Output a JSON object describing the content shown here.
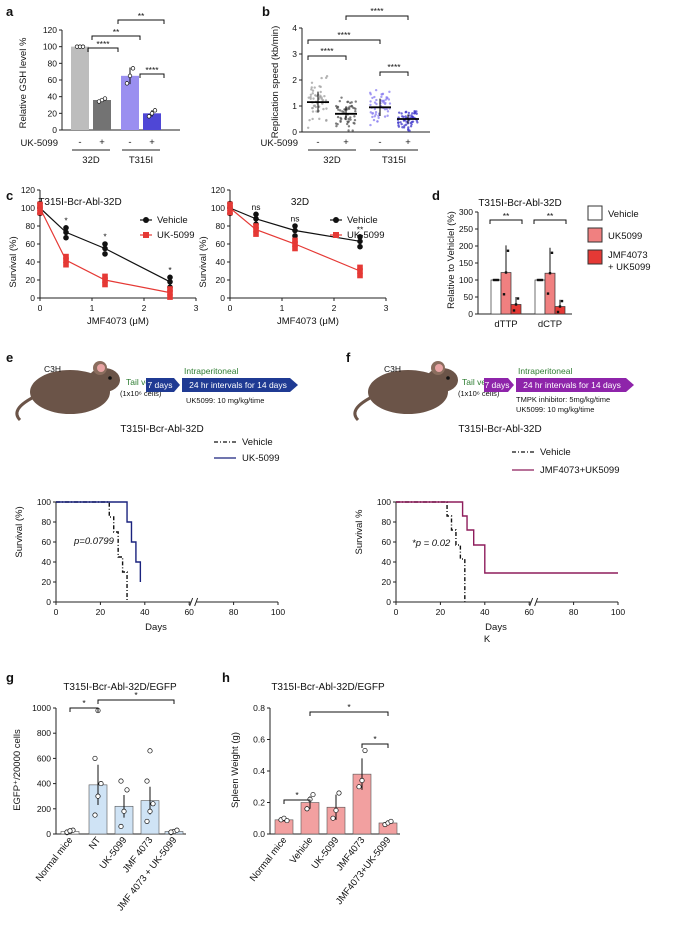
{
  "panels": {
    "a": {
      "letter": "a",
      "ylabel": "Relative GSH level %",
      "yticks": [
        "0",
        "20",
        "40",
        "60",
        "80",
        "100",
        "120"
      ],
      "bars": [
        100,
        36,
        65,
        20
      ],
      "colors": [
        "#bdbdbd",
        "#737373",
        "#9a8ff0",
        "#4f47d6"
      ],
      "sig": [
        "****",
        "**",
        "**",
        "****"
      ],
      "treat_label": "UK-5099",
      "treat_signs": [
        "-",
        "+",
        "-",
        "+"
      ],
      "groups": [
        "32D",
        "T315I"
      ]
    },
    "b": {
      "letter": "b",
      "ylabel": "Replication speed (kb/min)",
      "yticks": [
        "0",
        "1",
        "2",
        "3",
        "4"
      ],
      "medians": [
        1.15,
        0.7,
        0.95,
        0.5
      ],
      "colors": [
        "#9e9e9e",
        "#555555",
        "#8a7ef0",
        "#3d36c9"
      ],
      "sig": [
        "****",
        "****",
        "****",
        "****"
      ],
      "treat_label": "UK-5099",
      "treat_signs": [
        "-",
        "+",
        "-",
        "+"
      ],
      "groups": [
        "32D",
        "T315I"
      ]
    },
    "c1": {
      "letter": "c",
      "title": "T315I-Bcr-Abl-32D",
      "ylabel": "Survival (%)",
      "xlabel": "JMF4073 (μM)",
      "xticks": [
        "0",
        "1",
        "2",
        "3"
      ],
      "yticks": [
        "0",
        "20",
        "40",
        "60",
        "80",
        "100",
        "120"
      ],
      "x": [
        0,
        0.5,
        1.25,
        2.5
      ],
      "vehicle": [
        100,
        73,
        55,
        18
      ],
      "uk": [
        100,
        42,
        20,
        6
      ],
      "sig": [
        "*",
        "*",
        "*"
      ],
      "legend": [
        "Vehicle",
        "UK-5099"
      ]
    },
    "c2": {
      "title": "32D",
      "ylabel": "Survival (%)",
      "xlabel": "JMF4073 (μM)",
      "xticks": [
        "0",
        "1",
        "2",
        "3"
      ],
      "yticks": [
        "0",
        "20",
        "40",
        "60",
        "80",
        "100",
        "120"
      ],
      "x": [
        0,
        0.5,
        1.25,
        2.5
      ],
      "vehicle": [
        100,
        88,
        75,
        63
      ],
      "uk": [
        100,
        76,
        60,
        30
      ],
      "sig": [
        "ns",
        "ns",
        "**"
      ],
      "legend": [
        "Vehicle",
        "UK-5099"
      ]
    },
    "d": {
      "letter": "d",
      "title": "T315I-Bcr-Abl-32D",
      "ylabel": "Relative to Vehiclel (%)",
      "yticks": [
        "0",
        "50",
        "100",
        "150",
        "200",
        "250",
        "300"
      ],
      "categories": [
        "dTTP",
        "dCTP"
      ],
      "series": [
        {
          "name": "Vehicle",
          "values": [
            100,
            100
          ],
          "color": "#ffffff"
        },
        {
          "name": "UK5099",
          "values": [
            122,
            120
          ],
          "color": "#f08080"
        },
        {
          "name": "JMF4073 + UK5099",
          "values": [
            28,
            22
          ],
          "color": "#e53935"
        }
      ],
      "sig": [
        "**",
        "**"
      ],
      "legend": [
        "Vehicle",
        "UK5099",
        "JMF4073",
        "+ UK5099"
      ]
    },
    "e": {
      "letter": "e",
      "mouse_label": "C3H",
      "tail": "Tail vein",
      "cells": "(1x10⁶ cells)",
      "days": "7 days",
      "ip": "Intraperitoneal",
      "interval": "24 hr intervals for 14 days",
      "dose": "UK5099: 10 mg/kg/time",
      "title": "T315I-Bcr-Abl-32D",
      "ylabel": "Survival (%)",
      "xlabel": "Days",
      "xticks": [
        "0",
        "20",
        "40",
        "60",
        "80",
        "100"
      ],
      "yticks": [
        "0",
        "20",
        "40",
        "60",
        "80",
        "100"
      ],
      "pval": "p=0.0799",
      "legend": [
        "Vehicle",
        "UK-5099"
      ]
    },
    "f": {
      "letter": "f",
      "mouse_label": "C3H",
      "tail": "Tail vein",
      "cells": "(1x10⁶ cells)",
      "days": "7 days",
      "ip": "Intraperitoneal",
      "interval": "24 hr intervals for 14 days",
      "dose1": "TMPK inhibitor: 5mg/kg/time",
      "dose2": "UK5099: 10 mg/kg/time",
      "title": "T315I-Bcr-Abl-32D",
      "ylabel": "Survival %",
      "xlabel": "Days",
      "xticks": [
        "0",
        "20",
        "40",
        "60",
        "80",
        "100"
      ],
      "yticks": [
        "0",
        "20",
        "40",
        "60",
        "80",
        "100"
      ],
      "pval": "*p = 0.02",
      "legend": [
        "Vehicle",
        "JMF4073+UK5099"
      ],
      "k_mark": "K"
    },
    "g": {
      "letter": "g",
      "title": "T315I-Bcr-Abl-32D/EGFP",
      "ylabel": "EGFP⁺/20000 cells",
      "yticks": [
        "0",
        "200",
        "400",
        "600",
        "800",
        "1000"
      ],
      "categories": [
        "Normal mice",
        "NT",
        "UK-5099",
        "JMF 4073",
        "JMF 4073 + UK-5099"
      ],
      "values": [
        20,
        390,
        220,
        265,
        20
      ],
      "colors": [
        "#ffffff",
        "#cfe3f5",
        "#cfe3f5",
        "#cfe3f5",
        "#cfe3f5"
      ],
      "sig": [
        "*",
        "*"
      ]
    },
    "h": {
      "letter": "h",
      "title": "T315I-Bcr-Abl-32D/EGFP",
      "ylabel": "Spleen Weight (g)",
      "yticks": [
        "0.0",
        "0.2",
        "0.4",
        "0.6",
        "0.8"
      ],
      "categories": [
        "Normal mice",
        "Vehicle",
        "UK-5099",
        "JMF4073",
        "JMF4073+UK-5099"
      ],
      "values": [
        0.09,
        0.2,
        0.17,
        0.38,
        0.07
      ],
      "color": "#f2a0a0",
      "sig": [
        "*",
        "*",
        "*"
      ]
    }
  },
  "chart_data": [
    {
      "type": "bar",
      "title": "",
      "categories": [
        "32D -",
        "32D +",
        "T315I -",
        "T315I +"
      ],
      "values": [
        100,
        36,
        65,
        20
      ],
      "ylabel": "Relative GSH level %",
      "ylim": [
        0,
        120
      ]
    },
    {
      "type": "scatter",
      "title": "",
      "categories": [
        "32D -",
        "32D +",
        "T315I -",
        "T315I +"
      ],
      "values": [
        1.15,
        0.7,
        0.95,
        0.5
      ],
      "ylabel": "Replication speed (kb/min)",
      "ylim": [
        0,
        4
      ]
    },
    {
      "type": "line",
      "title": "T315I-Bcr-Abl-32D",
      "x": [
        0,
        0.5,
        1.25,
        2.5
      ],
      "series": [
        {
          "name": "Vehicle",
          "values": [
            100,
            73,
            55,
            18
          ]
        },
        {
          "name": "UK-5099",
          "values": [
            100,
            42,
            20,
            6
          ]
        }
      ],
      "xlabel": "JMF4073 (μM)",
      "ylabel": "Survival (%)",
      "ylim": [
        0,
        120
      ],
      "xlim": [
        0,
        3
      ]
    },
    {
      "type": "line",
      "title": "32D",
      "x": [
        0,
        0.5,
        1.25,
        2.5
      ],
      "series": [
        {
          "name": "Vehicle",
          "values": [
            100,
            88,
            75,
            63
          ]
        },
        {
          "name": "UK-5099",
          "values": [
            100,
            76,
            60,
            30
          ]
        }
      ],
      "xlabel": "JMF4073 (μM)",
      "ylabel": "Survival (%)",
      "ylim": [
        0,
        120
      ],
      "xlim": [
        0,
        3
      ]
    },
    {
      "type": "bar",
      "title": "T315I-Bcr-Abl-32D",
      "categories": [
        "dTTP",
        "dCTP"
      ],
      "series": [
        {
          "name": "Vehicle",
          "values": [
            100,
            100
          ]
        },
        {
          "name": "UK5099",
          "values": [
            122,
            120
          ]
        },
        {
          "name": "JMF4073 + UK5099",
          "values": [
            28,
            22
          ]
        }
      ],
      "ylabel": "Relative to Vehiclel (%)",
      "ylim": [
        0,
        300
      ]
    },
    {
      "type": "line",
      "title": "T315I-Bcr-Abl-32D",
      "series": [
        {
          "name": "Vehicle",
          "x": [
            0,
            22,
            24,
            26,
            28,
            30,
            32
          ],
          "values": [
            100,
            100,
            85,
            70,
            45,
            30,
            0
          ]
        },
        {
          "name": "UK-5099",
          "x": [
            0,
            28,
            32,
            34,
            36,
            38
          ],
          "values": [
            100,
            100,
            80,
            60,
            40,
            20
          ]
        }
      ],
      "xlabel": "Days",
      "ylabel": "Survival (%)",
      "ylim": [
        0,
        100
      ],
      "xlim": [
        0,
        100
      ]
    },
    {
      "type": "line",
      "title": "T315I-Bcr-Abl-32D",
      "series": [
        {
          "name": "Vehicle",
          "x": [
            0,
            21,
            23,
            25,
            27,
            29,
            31
          ],
          "values": [
            100,
            100,
            86,
            72,
            57,
            43,
            0
          ]
        },
        {
          "name": "JMF4073+UK5099",
          "x": [
            0,
            27,
            30,
            32,
            35,
            40,
            100
          ],
          "values": [
            100,
            100,
            86,
            72,
            57,
            29,
            29
          ]
        }
      ],
      "xlabel": "Days",
      "ylabel": "Survival %",
      "ylim": [
        0,
        100
      ],
      "xlim": [
        0,
        100
      ]
    },
    {
      "type": "bar",
      "title": "T315I-Bcr-Abl-32D/EGFP",
      "categories": [
        "Normal mice",
        "NT",
        "UK-5099",
        "JMF 4073",
        "JMF 4073 + UK-5099"
      ],
      "values": [
        20,
        390,
        220,
        265,
        20
      ],
      "ylabel": "EGFP+/20000 cells",
      "ylim": [
        0,
        1000
      ]
    },
    {
      "type": "bar",
      "title": "T315I-Bcr-Abl-32D/EGFP",
      "categories": [
        "Normal mice",
        "Vehicle",
        "UK-5099",
        "JMF4073",
        "JMF4073+UK-5099"
      ],
      "values": [
        0.09,
        0.2,
        0.17,
        0.38,
        0.07
      ],
      "ylabel": "Spleen Weight (g)",
      "ylim": [
        0,
        0.8
      ]
    }
  ]
}
